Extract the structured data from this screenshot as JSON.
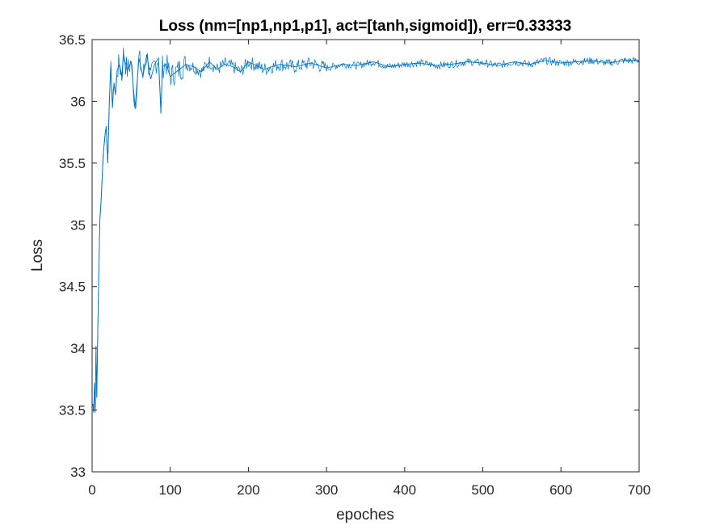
{
  "chart_data": {
    "type": "line",
    "title": "Loss (nm=[np1,np1,p1], act=[tanh,sigmoid]), err=0.33333",
    "xlabel": "epoches",
    "ylabel": "Loss",
    "xlim": [
      0,
      700
    ],
    "ylim": [
      33,
      36.5
    ],
    "xticks": [
      0,
      100,
      200,
      300,
      400,
      500,
      600,
      700
    ],
    "yticks": [
      33,
      33.5,
      34,
      34.5,
      35,
      35.5,
      36,
      36.5
    ],
    "xtick_labels": [
      "0",
      "100",
      "200",
      "300",
      "400",
      "500",
      "600",
      "700"
    ],
    "ytick_labels": [
      "33",
      "33.5",
      "34",
      "34.5",
      "35",
      "35.5",
      "36",
      "36.5"
    ],
    "grid": false,
    "box": true,
    "line_color": "#0072BD",
    "axis_color": "#262626",
    "series": [
      {
        "x": [
          1,
          2,
          3,
          4,
          5,
          6,
          7,
          8,
          9,
          10,
          12,
          14,
          16,
          18,
          20,
          22,
          24,
          26,
          28,
          30,
          32,
          35,
          38,
          40,
          45,
          50,
          55,
          60,
          65,
          70,
          75,
          80,
          85,
          88,
          90,
          95,
          100,
          110,
          120,
          130,
          140,
          150,
          160,
          170,
          180,
          190,
          200,
          220,
          240,
          260,
          280,
          300,
          320,
          340,
          360,
          380,
          400,
          420,
          440,
          460,
          480,
          500,
          520,
          540,
          560,
          580,
          600,
          620,
          640,
          660,
          680,
          700
        ],
        "values": [
          33.55,
          33.48,
          33.72,
          33.5,
          34.02,
          33.6,
          34.05,
          34.4,
          34.75,
          35.05,
          35.25,
          35.55,
          35.7,
          35.8,
          35.5,
          36.0,
          36.28,
          35.95,
          36.15,
          36.05,
          36.25,
          36.3,
          36.2,
          36.38,
          36.25,
          36.32,
          35.95,
          36.35,
          36.2,
          36.38,
          36.18,
          36.3,
          36.35,
          35.9,
          36.28,
          36.3,
          36.2,
          36.25,
          36.3,
          36.28,
          36.24,
          36.32,
          36.26,
          36.3,
          36.28,
          36.24,
          36.32,
          36.26,
          36.3,
          36.28,
          36.31,
          36.27,
          36.3,
          36.29,
          36.32,
          36.28,
          36.3,
          36.31,
          36.29,
          36.3,
          36.32,
          36.31,
          36.29,
          36.32,
          36.3,
          36.33,
          36.31,
          36.32,
          36.33,
          36.31,
          36.33,
          36.33
        ]
      }
    ]
  }
}
